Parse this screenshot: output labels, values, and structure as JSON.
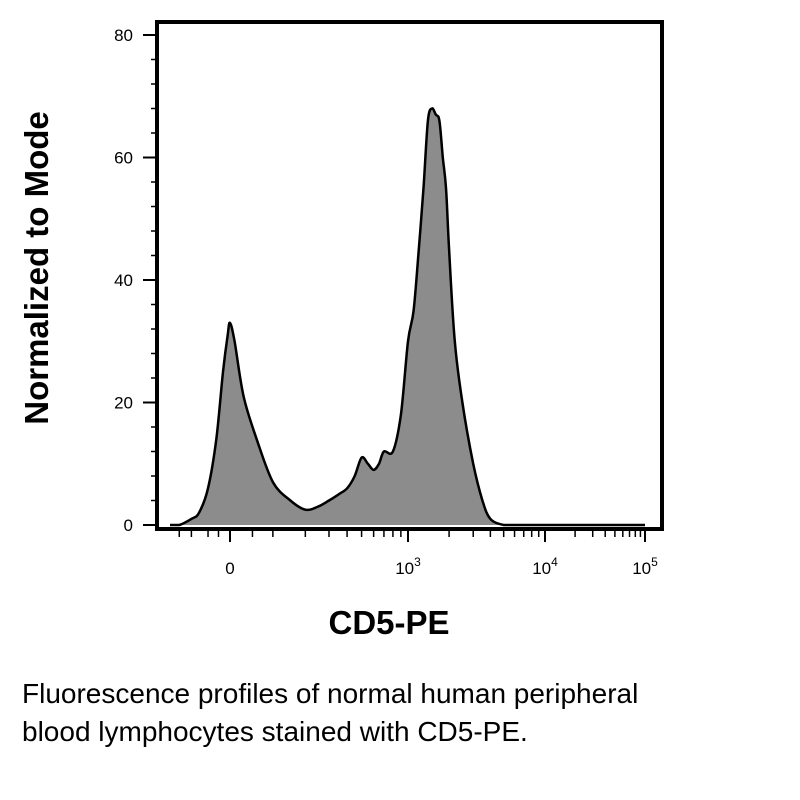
{
  "chart_data": {
    "type": "area",
    "title": "",
    "xlabel": "CD5-PE",
    "ylabel": "Normalized to Mode",
    "x_scale": "biexponential",
    "ylim": [
      0,
      80
    ],
    "y_ticks": [
      "0",
      "20",
      "40",
      "60",
      "80"
    ],
    "x_ticks": [
      {
        "value": 0,
        "base": "0",
        "exp": ""
      },
      {
        "value": 1000,
        "base": "10",
        "exp": "3"
      },
      {
        "value": 10000,
        "base": "10",
        "exp": "4"
      },
      {
        "value": 100000,
        "base": "10",
        "exp": "5"
      }
    ],
    "grid": false,
    "legend": "none",
    "fill_color": "#8c8c8c",
    "line_color": "#000000",
    "series": [
      {
        "x": [
          -400,
          -300,
          -200,
          -150,
          -100,
          -60,
          -30,
          -10,
          0,
          10,
          30,
          60,
          100,
          150,
          200,
          250,
          300,
          350,
          400,
          450,
          500,
          550,
          600,
          650,
          700,
          800,
          900,
          1000,
          1100,
          1200,
          1300,
          1400,
          1500,
          1600,
          1700,
          1800,
          1900,
          2000,
          2200,
          2500,
          3000,
          3500,
          4000,
          5000,
          6000,
          7000,
          8000,
          9000,
          10000,
          20000,
          50000,
          100000
        ],
        "y": [
          0,
          0,
          1,
          2,
          6,
          14,
          25,
          31,
          33,
          30,
          21,
          14,
          7,
          4,
          2.5,
          3,
          4,
          5,
          6,
          8,
          11,
          10,
          9,
          10,
          12,
          12,
          18,
          30,
          35,
          45,
          55,
          66,
          68,
          67,
          66,
          60,
          55,
          45,
          30,
          20,
          10,
          4,
          1,
          0,
          0,
          0,
          0,
          0,
          0,
          0,
          0,
          0
        ]
      }
    ]
  },
  "caption": {
    "line1": "Fluorescence profiles of normal human peripheral",
    "line2": "blood lymphocytes stained with CD5-PE."
  }
}
